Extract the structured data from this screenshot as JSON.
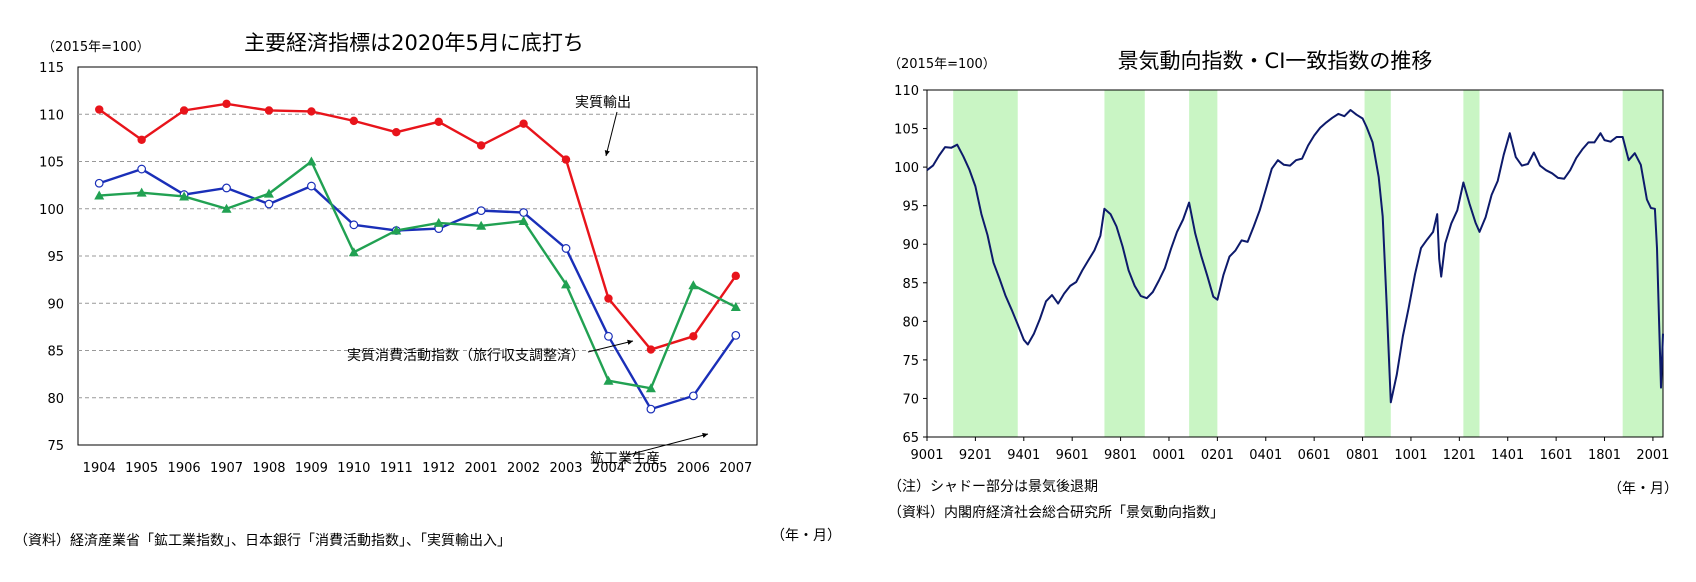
{
  "chart_data": [
    {
      "type": "line",
      "title": "主要経済指標は2020年5月に底打ち",
      "unit_label": "（2015年=100）",
      "xunit_label": "（年・月）",
      "source": "（資料）経済産業省「鉱工業指数」、日本銀行「消費活動指数」、「実質輸出入」",
      "categories": [
        "1904",
        "1905",
        "1906",
        "1907",
        "1908",
        "1909",
        "1910",
        "1911",
        "1912",
        "2001",
        "2002",
        "2003",
        "2004",
        "2005",
        "2006",
        "2007"
      ],
      "ylim": [
        75,
        115
      ],
      "yticks": [
        75,
        80,
        85,
        90,
        95,
        100,
        105,
        110,
        115
      ],
      "grid": true,
      "series": [
        {
          "name": "実質輸出",
          "color": "#e8141b",
          "marker": "filled-circle",
          "values": [
            110.5,
            107.3,
            110.4,
            111.1,
            110.4,
            110.3,
            109.3,
            108.1,
            109.2,
            106.7,
            109.0,
            105.2,
            90.5,
            85.1,
            86.5,
            92.9
          ]
        },
        {
          "name": "実質消費活動指数（旅行収支調整済）",
          "color": "#1a2fb8",
          "marker": "open-circle",
          "values": [
            102.7,
            104.2,
            101.5,
            102.2,
            100.5,
            102.4,
            98.3,
            97.7,
            97.9,
            99.8,
            99.6,
            95.8,
            86.5,
            78.8,
            80.2,
            86.6
          ]
        },
        {
          "name": "鉱工業生産",
          "color": "#21a152",
          "marker": "triangle",
          "values": [
            101.4,
            101.7,
            101.3,
            100.0,
            101.6,
            105.0,
            95.4,
            97.7,
            98.5,
            98.2,
            98.7,
            92.0,
            81.8,
            81.0,
            91.9,
            89.6
          ]
        }
      ]
    },
    {
      "type": "line",
      "title": "景気動向指数・CI一致指数の推移",
      "unit_label": "（2015年=100）",
      "xunit_label": "（年・月）",
      "note": "（注）シャドー部分は景気後退期",
      "source": "（資料）内閣府経済社会総合研究所「景気動向指数」",
      "xticks": [
        "9001",
        "9201",
        "9401",
        "9601",
        "9801",
        "0001",
        "0201",
        "0401",
        "0601",
        "0801",
        "1001",
        "1201",
        "1401",
        "1601",
        "1801",
        "2001"
      ],
      "xrange": [
        "1990-01",
        "2020-06"
      ],
      "ylim": [
        65,
        110
      ],
      "yticks": [
        65,
        70,
        75,
        80,
        85,
        90,
        95,
        100,
        105,
        110
      ],
      "grid": false,
      "recessions": [
        [
          "1991-02",
          "1993-10"
        ],
        [
          "1997-05",
          "1999-01"
        ],
        [
          "2000-11",
          "2002-01"
        ],
        [
          "2008-02",
          "2009-03"
        ],
        [
          "2012-03",
          "2012-11"
        ],
        [
          "2018-10",
          "2020-06"
        ]
      ],
      "series": [
        {
          "name": "",
          "color": "#0d1a6b",
          "points": [
            [
              "1990-01",
              99.6
            ],
            [
              "1990-04",
              100.2
            ],
            [
              "1990-07",
              101.5
            ],
            [
              "1990-10",
              102.6
            ],
            [
              "1991-01",
              102.5
            ],
            [
              "1991-04",
              102.9
            ],
            [
              "1991-07",
              101.4
            ],
            [
              "1991-10",
              99.7
            ],
            [
              "1992-01",
              97.5
            ],
            [
              "1992-04",
              93.9
            ],
            [
              "1992-07",
              91.2
            ],
            [
              "1992-10",
              87.6
            ],
            [
              "1993-01",
              85.5
            ],
            [
              "1993-04",
              83.3
            ],
            [
              "1993-07",
              81.5
            ],
            [
              "1993-10",
              79.6
            ],
            [
              "1994-01",
              77.6
            ],
            [
              "1994-03",
              77.0
            ],
            [
              "1994-06",
              78.4
            ],
            [
              "1994-09",
              80.3
            ],
            [
              "1994-12",
              82.6
            ],
            [
              "1995-03",
              83.4
            ],
            [
              "1995-06",
              82.3
            ],
            [
              "1995-09",
              83.6
            ],
            [
              "1995-12",
              84.6
            ],
            [
              "1996-03",
              85.1
            ],
            [
              "1996-06",
              86.6
            ],
            [
              "1996-09",
              87.9
            ],
            [
              "1996-12",
              89.2
            ],
            [
              "1997-03",
              91.1
            ],
            [
              "1997-05",
              94.6
            ],
            [
              "1997-08",
              93.9
            ],
            [
              "1997-11",
              92.3
            ],
            [
              "1998-02",
              89.7
            ],
            [
              "1998-05",
              86.6
            ],
            [
              "1998-08",
              84.6
            ],
            [
              "1998-11",
              83.3
            ],
            [
              "1999-02",
              83.0
            ],
            [
              "1999-05",
              83.8
            ],
            [
              "1999-08",
              85.3
            ],
            [
              "1999-11",
              86.9
            ],
            [
              "2000-02",
              89.4
            ],
            [
              "2000-05",
              91.6
            ],
            [
              "2000-08",
              93.2
            ],
            [
              "2000-11",
              95.4
            ],
            [
              "2001-02",
              91.4
            ],
            [
              "2001-05",
              88.5
            ],
            [
              "2001-08",
              85.9
            ],
            [
              "2001-11",
              83.2
            ],
            [
              "2002-01",
              82.8
            ],
            [
              "2002-04",
              86.0
            ],
            [
              "2002-07",
              88.4
            ],
            [
              "2002-10",
              89.2
            ],
            [
              "2003-01",
              90.5
            ],
            [
              "2003-04",
              90.3
            ],
            [
              "2003-07",
              92.3
            ],
            [
              "2003-10",
              94.4
            ],
            [
              "2004-01",
              97.1
            ],
            [
              "2004-04",
              99.8
            ],
            [
              "2004-07",
              100.9
            ],
            [
              "2004-10",
              100.3
            ],
            [
              "2005-01",
              100.2
            ],
            [
              "2005-04",
              100.9
            ],
            [
              "2005-07",
              101.1
            ],
            [
              "2005-10",
              102.8
            ],
            [
              "2006-01",
              104.1
            ],
            [
              "2006-04",
              105.1
            ],
            [
              "2006-07",
              105.8
            ],
            [
              "2006-10",
              106.4
            ],
            [
              "2007-01",
              106.9
            ],
            [
              "2007-04",
              106.6
            ],
            [
              "2007-07",
              107.4
            ],
            [
              "2007-10",
              106.8
            ],
            [
              "2008-01",
              106.3
            ],
            [
              "2008-03",
              105.2
            ],
            [
              "2008-06",
              103.2
            ],
            [
              "2008-09",
              98.7
            ],
            [
              "2008-11",
              93.6
            ],
            [
              "2009-01",
              82.1
            ],
            [
              "2009-03",
              69.5
            ],
            [
              "2009-06",
              73.1
            ],
            [
              "2009-09",
              78.1
            ],
            [
              "2009-12",
              81.9
            ],
            [
              "2010-03",
              86.1
            ],
            [
              "2010-06",
              89.5
            ],
            [
              "2010-09",
              90.6
            ],
            [
              "2010-12",
              91.6
            ],
            [
              "2011-02",
              93.9
            ],
            [
              "2011-03",
              88.1
            ],
            [
              "2011-04",
              85.8
            ],
            [
              "2011-06",
              90.1
            ],
            [
              "2011-09",
              92.7
            ],
            [
              "2011-12",
              94.4
            ],
            [
              "2012-03",
              98.0
            ],
            [
              "2012-06",
              95.3
            ],
            [
              "2012-09",
              92.8
            ],
            [
              "2012-11",
              91.6
            ],
            [
              "2013-02",
              93.5
            ],
            [
              "2013-05",
              96.4
            ],
            [
              "2013-08",
              98.2
            ],
            [
              "2013-11",
              101.6
            ],
            [
              "2014-02",
              104.4
            ],
            [
              "2014-05",
              101.3
            ],
            [
              "2014-08",
              100.2
            ],
            [
              "2014-11",
              100.4
            ],
            [
              "2015-02",
              101.9
            ],
            [
              "2015-05",
              100.2
            ],
            [
              "2015-08",
              99.6
            ],
            [
              "2015-11",
              99.2
            ],
            [
              "2016-02",
              98.6
            ],
            [
              "2016-05",
              98.5
            ],
            [
              "2016-08",
              99.6
            ],
            [
              "2016-11",
              101.2
            ],
            [
              "2017-02",
              102.3
            ],
            [
              "2017-05",
              103.2
            ],
            [
              "2017-08",
              103.2
            ],
            [
              "2017-11",
              104.4
            ],
            [
              "2018-01",
              103.5
            ],
            [
              "2018-04",
              103.3
            ],
            [
              "2018-07",
              103.9
            ],
            [
              "2018-10",
              103.9
            ],
            [
              "2019-01",
              100.9
            ],
            [
              "2019-04",
              101.8
            ],
            [
              "2019-07",
              100.3
            ],
            [
              "2019-10",
              95.8
            ],
            [
              "2019-12",
              94.7
            ],
            [
              "2020-02",
              94.6
            ],
            [
              "2020-03",
              89.5
            ],
            [
              "2020-04",
              80.3
            ],
            [
              "2020-05",
              71.4
            ],
            [
              "2020-06",
              78.4
            ]
          ]
        }
      ]
    }
  ]
}
